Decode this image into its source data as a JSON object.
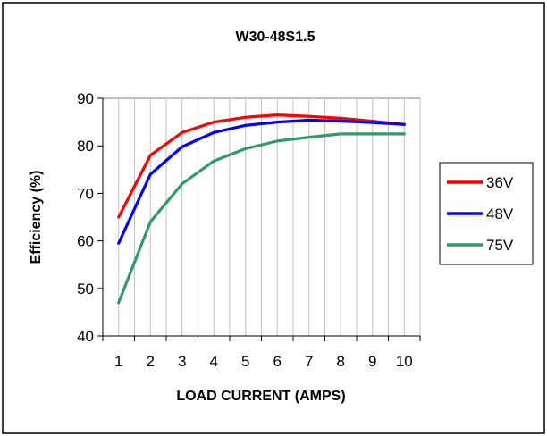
{
  "chart_data": {
    "type": "line",
    "title": "W30-48S1.5",
    "xlabel": "LOAD CURRENT (AMPS)",
    "ylabel": "Efficiency (%)",
    "x": [
      1,
      2,
      3,
      4,
      5,
      6,
      7,
      8,
      9,
      10
    ],
    "xlim": [
      0.5,
      10.5
    ],
    "ylim": [
      40,
      90
    ],
    "yticks": [
      40,
      50,
      60,
      70,
      80,
      90
    ],
    "grid": "vertical",
    "legend_position": "right",
    "series": [
      {
        "name": "36V",
        "color": "#ff0000",
        "x": [
          1,
          2,
          3,
          4,
          5,
          6,
          7,
          8,
          9,
          10
        ],
        "values": [
          65.0,
          78.0,
          82.8,
          85.0,
          86.0,
          86.5,
          86.2,
          85.8,
          85.2,
          84.5
        ]
      },
      {
        "name": "48V",
        "color": "#0000ff",
        "x": [
          1,
          2,
          3,
          4,
          5,
          6,
          7,
          8,
          9,
          10
        ],
        "values": [
          59.5,
          74.0,
          79.8,
          82.8,
          84.3,
          85.0,
          85.4,
          85.2,
          84.9,
          84.5
        ]
      },
      {
        "name": "75V",
        "color": "#339966",
        "x": [
          1,
          2,
          3,
          4,
          5,
          6,
          7,
          8,
          9,
          10
        ],
        "values": [
          47.0,
          64.0,
          72.0,
          76.8,
          79.4,
          81.0,
          81.8,
          82.5,
          82.5,
          82.5
        ]
      }
    ]
  }
}
